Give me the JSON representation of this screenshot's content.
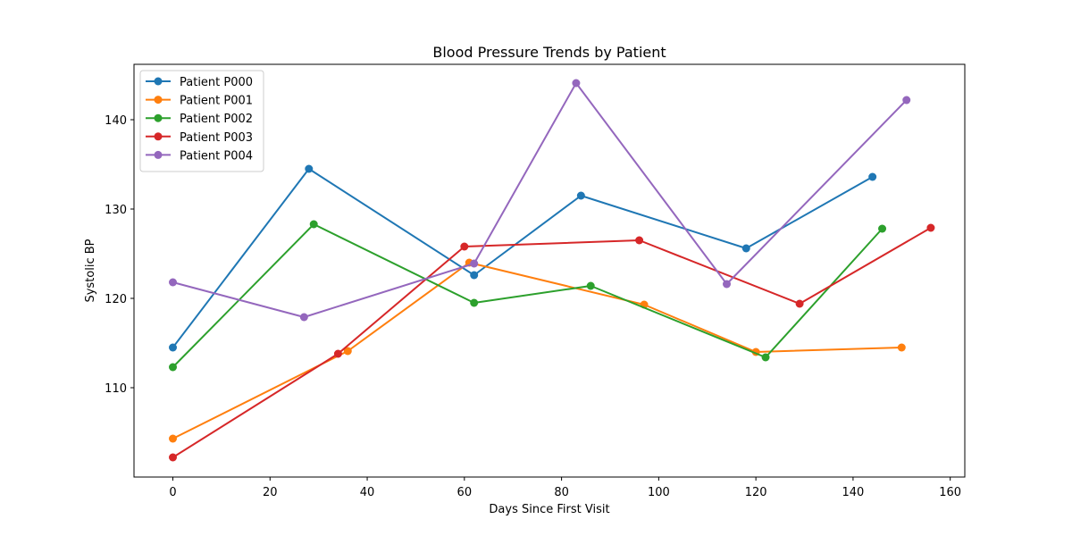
{
  "chart_data": {
    "type": "line",
    "title": "Blood Pressure Trends by Patient",
    "xlabel": "Days Since First Visit",
    "ylabel": "Systolic BP",
    "xlim": [
      -8,
      163
    ],
    "ylim": [
      100,
      146.2
    ],
    "xticks": [
      0,
      20,
      40,
      60,
      80,
      100,
      120,
      140,
      160
    ],
    "yticks": [
      110,
      120,
      130,
      140
    ],
    "grid": false,
    "legend_position": "upper-left",
    "series": [
      {
        "name": "Patient P000",
        "color": "#1f77b4",
        "x": [
          0,
          28,
          62,
          84,
          118,
          144
        ],
        "y": [
          114.5,
          134.5,
          122.6,
          131.5,
          125.6,
          133.6
        ]
      },
      {
        "name": "Patient P001",
        "color": "#ff7f0e",
        "x": [
          0,
          36,
          61,
          97,
          120,
          150
        ],
        "y": [
          104.3,
          114.1,
          124.0,
          119.3,
          114.0,
          114.5
        ]
      },
      {
        "name": "Patient P002",
        "color": "#2ca02c",
        "x": [
          0,
          29,
          62,
          86,
          122,
          146
        ],
        "y": [
          112.3,
          128.3,
          119.5,
          121.4,
          113.4,
          127.8
        ]
      },
      {
        "name": "Patient P003",
        "color": "#d62728",
        "x": [
          0,
          34,
          60,
          96,
          129,
          156
        ],
        "y": [
          102.2,
          113.8,
          125.8,
          126.5,
          119.4,
          127.9
        ]
      },
      {
        "name": "Patient P004",
        "color": "#9467bd",
        "x": [
          0,
          27,
          62,
          83,
          114,
          151
        ],
        "y": [
          121.8,
          117.9,
          123.9,
          144.1,
          121.6,
          142.2
        ]
      }
    ]
  }
}
